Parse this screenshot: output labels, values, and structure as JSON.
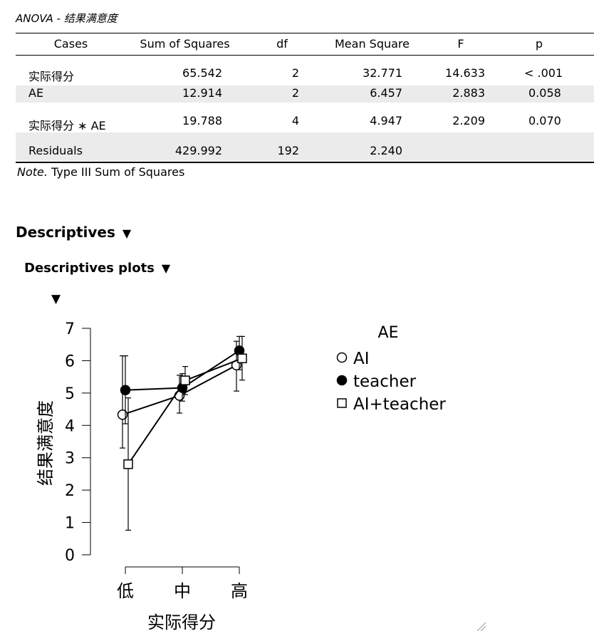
{
  "anova": {
    "title": "ANOVA - 结果满意度",
    "headers": [
      "Cases",
      "Sum of Squares",
      "df",
      "Mean Square",
      "F",
      "p"
    ],
    "rows": [
      {
        "cases": "实际得分",
        "ss": "65.542",
        "df": "2",
        "ms": "32.771",
        "f": "14.633",
        "p": "< .001"
      },
      {
        "cases": "AE",
        "ss": "12.914",
        "df": "2",
        "ms": "6.457",
        "f": "2.883",
        "p": "0.058"
      },
      {
        "cases": "实际得分 ∗ AE",
        "ss": "19.788",
        "df": "4",
        "ms": "4.947",
        "f": "2.209",
        "p": "0.070"
      },
      {
        "cases": "Residuals",
        "ss": "429.992",
        "df": "192",
        "ms": "2.240",
        "f": "",
        "p": ""
      }
    ],
    "note_label": "Note.",
    "note_text": " Type III Sum of Squares"
  },
  "sections": {
    "descriptives": "Descriptives",
    "descriptives_plots": "Descriptives plots",
    "toggle_glyph": "▼"
  },
  "chart_data": {
    "type": "line",
    "categories": [
      "低",
      "中",
      "高"
    ],
    "xlabel": "实际得分",
    "ylabel": "结果满意度",
    "ylim": [
      0,
      7
    ],
    "yticks": [
      0,
      1,
      2,
      3,
      4,
      5,
      6,
      7
    ],
    "legend_title": "AE",
    "legend_position": "right",
    "series": [
      {
        "name": "AI",
        "marker": "circle-open",
        "values": [
          4.33,
          4.92,
          5.86
        ],
        "error_low": [
          3.3,
          4.38,
          5.06
        ],
        "error_high": [
          6.15,
          5.55,
          6.6
        ]
      },
      {
        "name": "teacher",
        "marker": "circle-filled",
        "values": [
          5.09,
          5.16,
          6.31
        ],
        "error_low": [
          4.05,
          4.75,
          5.72
        ],
        "error_high": [
          6.15,
          5.6,
          6.75
        ]
      },
      {
        "name": "AI+teacher",
        "marker": "square-open",
        "values": [
          2.8,
          5.39,
          6.07
        ],
        "error_low": [
          0.76,
          4.95,
          5.4
        ],
        "error_high": [
          4.85,
          5.82,
          6.75
        ]
      }
    ]
  }
}
